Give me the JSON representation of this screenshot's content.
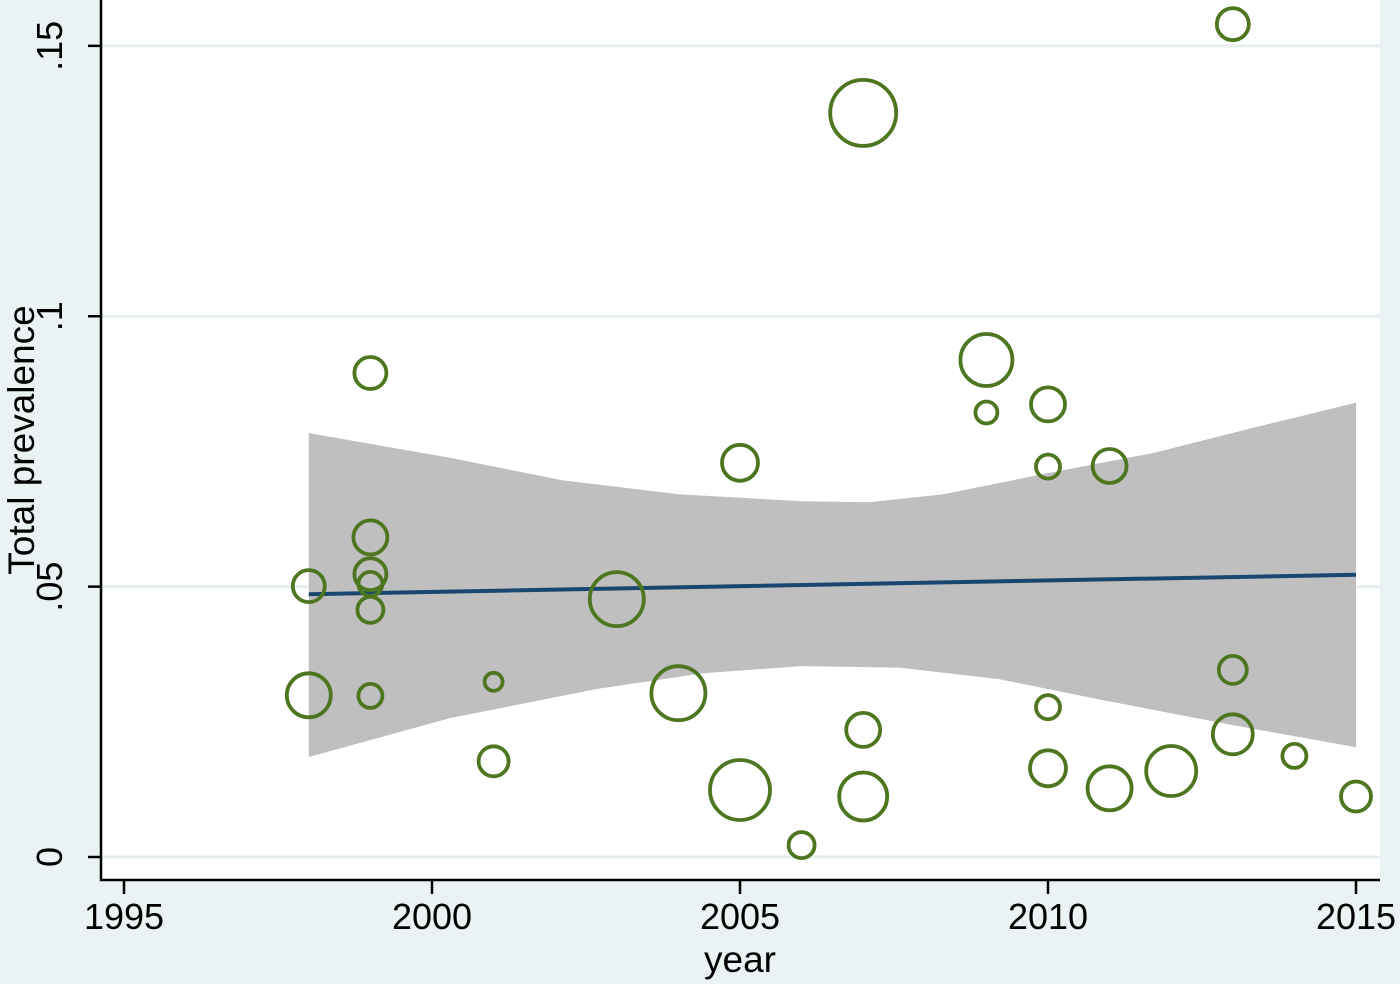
{
  "chart_data": {
    "type": "scatter",
    "variant": "bubble-meta-regression",
    "title": "",
    "xlabel": "year",
    "ylabel": "Total prevalence",
    "x_ticks": [
      1995,
      2000,
      2005,
      2010,
      2015
    ],
    "x_tick_labels": [
      "1995",
      "2000",
      "2005",
      "2010",
      "2015"
    ],
    "y_ticks": [
      0,
      0.05,
      0.1,
      0.15
    ],
    "y_tick_labels": [
      "0",
      ".05",
      ".1",
      ".15"
    ],
    "xlim": [
      1994.6266,
      2015.3896
    ],
    "ylim": [
      -0.00425,
      0.15848
    ],
    "grid": true,
    "legend": "none",
    "points": [
      {
        "year": 1998,
        "prevalence": 0.0501,
        "r": 16
      },
      {
        "year": 1998,
        "prevalence": 0.0299,
        "r": 22
      },
      {
        "year": 1999,
        "prevalence": 0.0895,
        "r": 16
      },
      {
        "year": 1999,
        "prevalence": 0.0591,
        "r": 17
      },
      {
        "year": 1999,
        "prevalence": 0.0523,
        "r": 16
      },
      {
        "year": 1999,
        "prevalence": 0.0505,
        "r": 12
      },
      {
        "year": 1999,
        "prevalence": 0.0457,
        "r": 13
      },
      {
        "year": 1999,
        "prevalence": 0.0298,
        "r": 12
      },
      {
        "year": 2001,
        "prevalence": 0.0324,
        "r": 9
      },
      {
        "year": 2001,
        "prevalence": 0.0177,
        "r": 15
      },
      {
        "year": 2003,
        "prevalence": 0.0477,
        "r": 27
      },
      {
        "year": 2004,
        "prevalence": 0.0303,
        "r": 27
      },
      {
        "year": 2005,
        "prevalence": 0.0729,
        "r": 18
      },
      {
        "year": 2005,
        "prevalence": 0.0124,
        "r": 30
      },
      {
        "year": 2006,
        "prevalence": 0.0022,
        "r": 13
      },
      {
        "year": 2007,
        "prevalence": 0.1376,
        "r": 33
      },
      {
        "year": 2007,
        "prevalence": 0.0235,
        "r": 17
      },
      {
        "year": 2007,
        "prevalence": 0.0112,
        "r": 24
      },
      {
        "year": 2009,
        "prevalence": 0.0919,
        "r": 26
      },
      {
        "year": 2009,
        "prevalence": 0.0822,
        "r": 11
      },
      {
        "year": 2010,
        "prevalence": 0.0837,
        "r": 17
      },
      {
        "year": 2010,
        "prevalence": 0.0722,
        "r": 12
      },
      {
        "year": 2010,
        "prevalence": 0.0277,
        "r": 12
      },
      {
        "year": 2010,
        "prevalence": 0.0164,
        "r": 18
      },
      {
        "year": 2011,
        "prevalence": 0.0723,
        "r": 17
      },
      {
        "year": 2011,
        "prevalence": 0.0127,
        "r": 22
      },
      {
        "year": 2012,
        "prevalence": 0.0159,
        "r": 25
      },
      {
        "year": 2013,
        "prevalence": 0.154,
        "r": 16
      },
      {
        "year": 2013,
        "prevalence": 0.0346,
        "r": 14
      },
      {
        "year": 2013,
        "prevalence": 0.0227,
        "r": 20
      },
      {
        "year": 2014,
        "prevalence": 0.0187,
        "r": 12
      },
      {
        "year": 2015,
        "prevalence": 0.0112,
        "r": 15
      }
    ],
    "regression_line": {
      "x": [
        1998,
        2015
      ],
      "y": [
        0.0486,
        0.0522
      ]
    },
    "ci_band": {
      "top": [
        [
          1998.0,
          0.0784
        ],
        [
          2000.3,
          0.0738
        ],
        [
          2002.1,
          0.0697
        ],
        [
          2004.0,
          0.0671
        ],
        [
          2006.0,
          0.0658
        ],
        [
          2007.1,
          0.0656
        ],
        [
          2008.3,
          0.0671
        ],
        [
          2010.0,
          0.071
        ],
        [
          2011.7,
          0.0747
        ],
        [
          2013.3,
          0.0793
        ],
        [
          2015.0,
          0.084
        ]
      ],
      "bottom": [
        [
          1998.0,
          0.0185
        ],
        [
          2000.3,
          0.0257
        ],
        [
          2002.7,
          0.0311
        ],
        [
          2004.4,
          0.034
        ],
        [
          2006.0,
          0.0353
        ],
        [
          2007.6,
          0.035
        ],
        [
          2009.2,
          0.0329
        ],
        [
          2010.9,
          0.029
        ],
        [
          2013.0,
          0.0244
        ],
        [
          2015.0,
          0.0203
        ]
      ]
    },
    "colors": {
      "background": "#eaf2f3",
      "plot_background": "#ffffff",
      "gridline": "#e6eef0",
      "axis": "#000000",
      "bubble_stroke": "#4e7620",
      "regression_line": "#1a476f",
      "ci_band": "#bfbfbf"
    }
  }
}
